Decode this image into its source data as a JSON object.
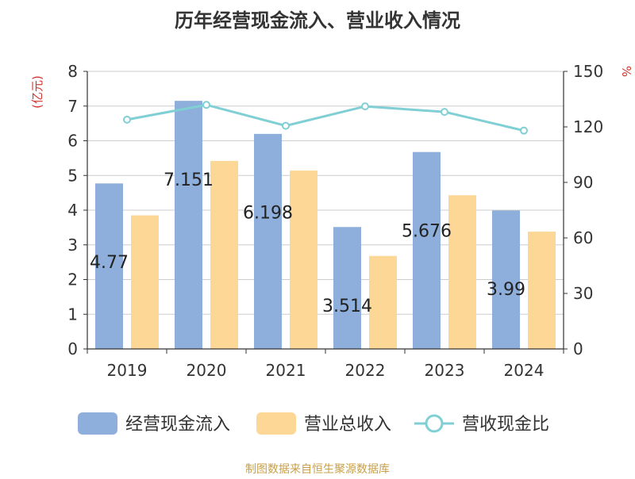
{
  "chart_data": {
    "type": "bar",
    "title": "历年经营现金流入、营业收入情况",
    "categories": [
      "2019",
      "2020",
      "2021",
      "2022",
      "2023",
      "2024"
    ],
    "series": [
      {
        "name": "经营现金流入",
        "kind": "bar",
        "axis": "left",
        "values": [
          4.77,
          7.151,
          6.198,
          3.514,
          5.676,
          3.99
        ],
        "color": "#8eaedb"
      },
      {
        "name": "营业总收入",
        "kind": "bar",
        "axis": "left",
        "values": [
          3.85,
          5.42,
          5.14,
          2.68,
          4.43,
          3.38
        ],
        "color": "#fdd795"
      },
      {
        "name": "营收现金比",
        "kind": "line",
        "axis": "right",
        "values": [
          123.9,
          131.9,
          120.6,
          131.1,
          128.1,
          118.0
        ],
        "color": "#7fcfd4"
      }
    ],
    "data_labels": [
      "4.77",
      "7.151",
      "6.198",
      "3.514",
      "5.676",
      "3.99"
    ],
    "left_axis": {
      "label": "(亿元)",
      "min": 0,
      "max": 8,
      "ticks": [
        "0",
        "1",
        "2",
        "3",
        "4",
        "5",
        "6",
        "7",
        "8"
      ]
    },
    "right_axis": {
      "label": "%",
      "min": 0,
      "max": 150,
      "ticks": [
        "0",
        "30",
        "60",
        "90",
        "120",
        "150"
      ]
    },
    "grid": true,
    "legend_position": "bottom",
    "source": "制图数据来自恒生聚源数据库",
    "colors": {
      "axis_label": "#d0342c",
      "source": "#c8a04a",
      "grid": "#cccccc"
    }
  }
}
